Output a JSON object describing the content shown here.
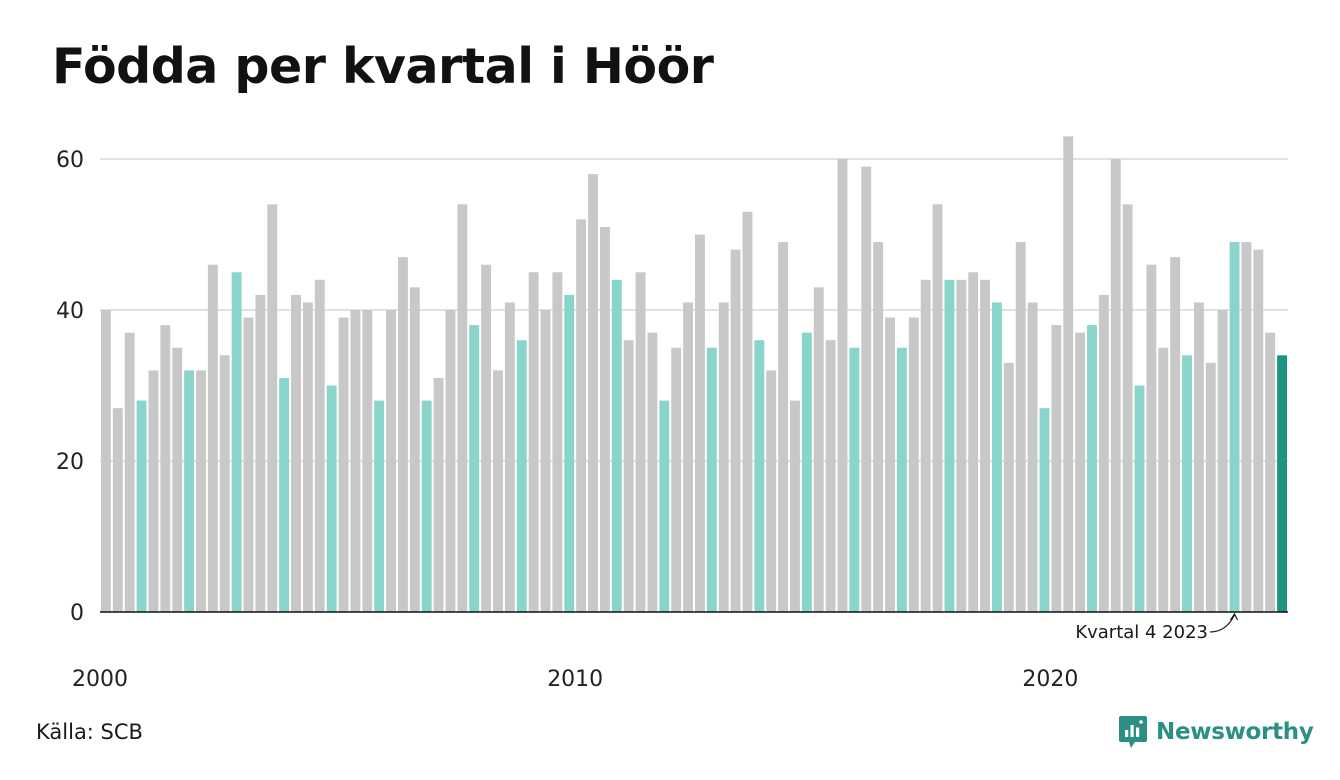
{
  "title": "Födda per kvartal i Höör",
  "source": "Källa: SCB",
  "brand": "Newsworthy",
  "annotation": "Kvartal 4 2023",
  "chart_data": {
    "type": "bar",
    "title": "Födda per kvartal i Höör",
    "ylim": [
      0,
      65
    ],
    "y_ticks": [
      0,
      20,
      40,
      60
    ],
    "x_tick_labels": [
      "2000",
      "2010",
      "2020"
    ],
    "grid": true,
    "start_year": 2000,
    "highlight_quarter": 4,
    "values": [
      40,
      27,
      37,
      28,
      32,
      38,
      35,
      32,
      32,
      46,
      34,
      45,
      39,
      42,
      54,
      31,
      42,
      41,
      44,
      30,
      39,
      40,
      40,
      28,
      40,
      47,
      43,
      28,
      31,
      40,
      54,
      38,
      46,
      32,
      41,
      36,
      45,
      40,
      45,
      42,
      52,
      58,
      51,
      44,
      36,
      45,
      37,
      28,
      35,
      41,
      50,
      35,
      41,
      48,
      53,
      36,
      32,
      49,
      28,
      37,
      43,
      36,
      60,
      35,
      59,
      49,
      39,
      35,
      39,
      44,
      54,
      44,
      44,
      45,
      44,
      41,
      33,
      49,
      41,
      27,
      38,
      63,
      37,
      38,
      42,
      60,
      54,
      30,
      46,
      35,
      47,
      34,
      41,
      33,
      40,
      49,
      49,
      48,
      37,
      34
    ],
    "colors": {
      "default": "#c8c8c8",
      "highlight": "#89d5cc",
      "latest": "#1b9484",
      "grid": "#e1e1e1",
      "axis": "#111111"
    }
  }
}
